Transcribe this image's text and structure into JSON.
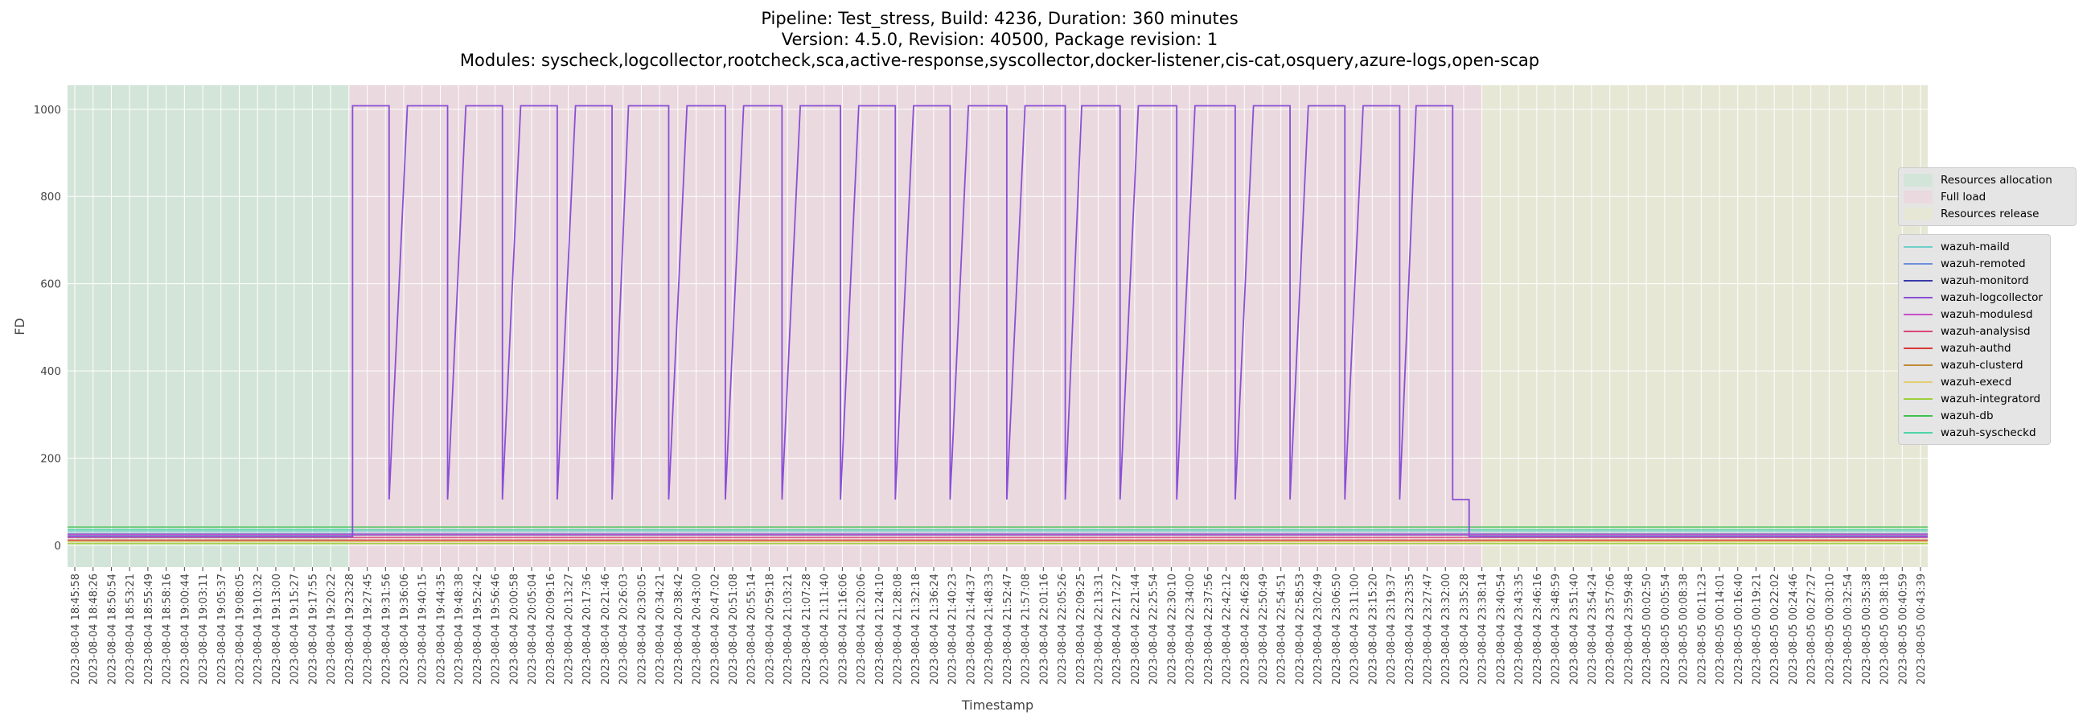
{
  "header": {
    "line1": "Pipeline: Test_stress, Build: 4236, Duration: 360 minutes",
    "line2": "Version: 4.5.0, Revision: 40500, Package revision: 1",
    "line3": "Modules: syscheck,logcollector,rootcheck,sca,active-response,syscollector,docker-listener,cis-cat,osquery,azure-logs,open-scap"
  },
  "chart_data": {
    "type": "line",
    "title": "Pipeline: Test_stress, Build: 4236, Duration: 360 minutes\nVersion: 4.5.0, Revision: 40500, Package revision: 1\nModules: syscheck,logcollector,rootcheck,sca,active-response,syscollector,docker-listener,cis-cat,osquery,azure-logs,open-scap",
    "xlabel": "Timestamp",
    "ylabel": "FD",
    "ylim": [
      -50,
      1055
    ],
    "yticks": [
      0,
      200,
      400,
      600,
      800,
      1000
    ],
    "grid": true,
    "legend_placement": "right",
    "x_ticks": [
      "2023-08-04 18:45:58",
      "2023-08-04 18:48:26",
      "2023-08-04 18:50:54",
      "2023-08-04 18:53:21",
      "2023-08-04 18:55:49",
      "2023-08-04 18:58:16",
      "2023-08-04 19:00:44",
      "2023-08-04 19:03:11",
      "2023-08-04 19:05:37",
      "2023-08-04 19:08:05",
      "2023-08-04 19:10:32",
      "2023-08-04 19:13:00",
      "2023-08-04 19:15:27",
      "2023-08-04 19:17:55",
      "2023-08-04 19:20:22",
      "2023-08-04 19:23:28",
      "2023-08-04 19:27:45",
      "2023-08-04 19:31:56",
      "2023-08-04 19:36:06",
      "2023-08-04 19:40:15",
      "2023-08-04 19:44:35",
      "2023-08-04 19:48:38",
      "2023-08-04 19:52:42",
      "2023-08-04 19:56:46",
      "2023-08-04 20:00:58",
      "2023-08-04 20:05:04",
      "2023-08-04 20:09:16",
      "2023-08-04 20:13:27",
      "2023-08-04 20:17:36",
      "2023-08-04 20:21:46",
      "2023-08-04 20:26:03",
      "2023-08-04 20:30:05",
      "2023-08-04 20:34:21",
      "2023-08-04 20:38:42",
      "2023-08-04 20:43:00",
      "2023-08-04 20:47:02",
      "2023-08-04 20:51:08",
      "2023-08-04 20:55:14",
      "2023-08-04 20:59:18",
      "2023-08-04 21:03:21",
      "2023-08-04 21:07:28",
      "2023-08-04 21:11:40",
      "2023-08-04 21:16:06",
      "2023-08-04 21:20:06",
      "2023-08-04 21:24:10",
      "2023-08-04 21:28:08",
      "2023-08-04 21:32:18",
      "2023-08-04 21:36:24",
      "2023-08-04 21:40:23",
      "2023-08-04 21:44:37",
      "2023-08-04 21:48:33",
      "2023-08-04 21:52:47",
      "2023-08-04 21:57:08",
      "2023-08-04 22:01:16",
      "2023-08-04 22:05:26",
      "2023-08-04 22:09:25",
      "2023-08-04 22:13:31",
      "2023-08-04 22:17:27",
      "2023-08-04 22:21:44",
      "2023-08-04 22:25:54",
      "2023-08-04 22:30:10",
      "2023-08-04 22:34:00",
      "2023-08-04 22:37:56",
      "2023-08-04 22:42:12",
      "2023-08-04 22:46:28",
      "2023-08-04 22:50:49",
      "2023-08-04 22:54:51",
      "2023-08-04 22:58:53",
      "2023-08-04 23:02:49",
      "2023-08-04 23:06:50",
      "2023-08-04 23:11:00",
      "2023-08-04 23:15:20",
      "2023-08-04 23:19:37",
      "2023-08-04 23:23:35",
      "2023-08-04 23:27:47",
      "2023-08-04 23:32:00",
      "2023-08-04 23:35:28",
      "2023-08-04 23:38:14",
      "2023-08-04 23:40:54",
      "2023-08-04 23:43:35",
      "2023-08-04 23:46:16",
      "2023-08-04 23:48:59",
      "2023-08-04 23:51:40",
      "2023-08-04 23:54:24",
      "2023-08-04 23:57:06",
      "2023-08-04 23:59:48",
      "2023-08-05 00:02:50",
      "2023-08-05 00:05:54",
      "2023-08-05 00:08:38",
      "2023-08-05 00:11:23",
      "2023-08-05 00:14:01",
      "2023-08-05 00:16:40",
      "2023-08-05 00:19:21",
      "2023-08-05 00:22:02",
      "2023-08-05 00:24:46",
      "2023-08-05 00:27:27",
      "2023-08-05 00:30:10",
      "2023-08-05 00:32:54",
      "2023-08-05 00:35:38",
      "2023-08-05 00:38:18",
      "2023-08-05 00:40:59",
      "2023-08-05 00:43:39"
    ],
    "phases": [
      {
        "name": "Resources allocation",
        "start_tick": 0,
        "end_tick": 15,
        "color": "#d3e5d8"
      },
      {
        "name": "Full load",
        "start_tick": 15,
        "end_tick": 77,
        "color": "#ead9de"
      },
      {
        "name": "Resources release",
        "start_tick": 77,
        "end_tick": 105,
        "color": "#e6e7d5"
      }
    ],
    "logcollector_cycles": {
      "high_value": 1008,
      "low_value": 105,
      "baseline_value": 20,
      "high_periods_ticks": [
        [
          15.2,
          17.2
        ],
        [
          18.2,
          20.4
        ],
        [
          21.4,
          23.4
        ],
        [
          24.4,
          26.4
        ],
        [
          27.4,
          29.4
        ],
        [
          30.3,
          32.5
        ],
        [
          33.5,
          35.6
        ],
        [
          36.6,
          38.7
        ],
        [
          39.7,
          41.9
        ],
        [
          42.9,
          44.9
        ],
        [
          45.9,
          47.9
        ],
        [
          48.9,
          51.0
        ],
        [
          52.0,
          54.2
        ],
        [
          55.1,
          57.2
        ],
        [
          58.2,
          60.3
        ],
        [
          61.3,
          63.5
        ],
        [
          64.5,
          66.5
        ],
        [
          67.5,
          69.5
        ],
        [
          70.5,
          72.5
        ],
        [
          73.4,
          75.4
        ]
      ],
      "drop_tick": 76.3
    },
    "series": [
      {
        "name": "wazuh-maild",
        "color": "#6fcfc9",
        "value": 33
      },
      {
        "name": "wazuh-remoted",
        "color": "#6f8fdc",
        "value": 27
      },
      {
        "name": "wazuh-monitord",
        "color": "#3a3aa8",
        "value": 24
      },
      {
        "name": "wazuh-logcollector",
        "color": "#8a4fd6",
        "value": 20
      },
      {
        "name": "wazuh-modulesd",
        "color": "#c94fc9",
        "value": 25
      },
      {
        "name": "wazuh-analysisd",
        "color": "#d9467a",
        "value": 18
      },
      {
        "name": "wazuh-authd",
        "color": "#d93a3a",
        "value": 12
      },
      {
        "name": "wazuh-clusterd",
        "color": "#c28a3a",
        "value": 9
      },
      {
        "name": "wazuh-execd",
        "color": "#e3cf6e",
        "value": 8
      },
      {
        "name": "wazuh-integratord",
        "color": "#9fcf3a",
        "value": 4
      },
      {
        "name": "wazuh-db",
        "color": "#3fc24f",
        "value": 42
      },
      {
        "name": "wazuh-syscheckd",
        "color": "#4fd6a6",
        "value": 36
      }
    ]
  },
  "legend_phases": [
    "Resources allocation",
    "Full load",
    "Resources release"
  ],
  "axis": {
    "ylabel": "FD",
    "xlabel": "Timestamp"
  }
}
